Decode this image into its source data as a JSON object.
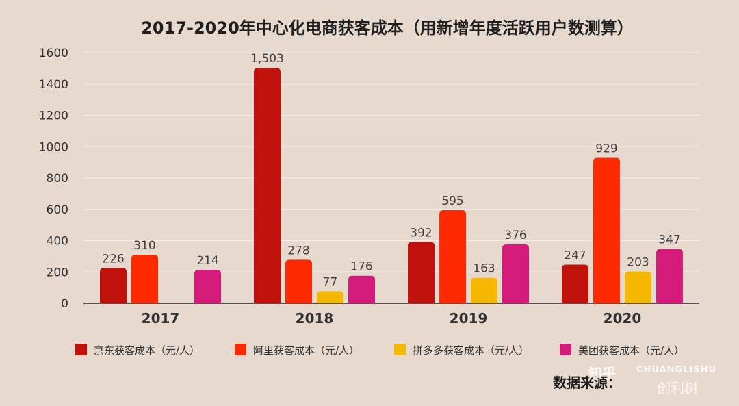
{
  "chart_data": {
    "type": "bar",
    "title": "2017-2020年中心化电商获客成本（用新增年度活跃用户数测算）",
    "categories": [
      "2017",
      "2018",
      "2019",
      "2020"
    ],
    "ylim": [
      0,
      1600
    ],
    "yticks": [
      0,
      200,
      400,
      600,
      800,
      1000,
      1200,
      1400,
      1600
    ],
    "xlabel": "",
    "ylabel": "",
    "grid": true,
    "legend_position": "bottom",
    "series": [
      {
        "name": "京东获客成本（元/人）",
        "color": "#c0120a",
        "values": [
          226,
          1503,
          392,
          247
        ],
        "labels": [
          "226",
          "1,503",
          "392",
          "247"
        ]
      },
      {
        "name": "阿里获客成本（元/人）",
        "color": "#ff2a00",
        "values": [
          310,
          278,
          595,
          929
        ],
        "labels": [
          "310",
          "278",
          "595",
          "929"
        ]
      },
      {
        "name": "拼多多获客成本（元/人）",
        "color": "#f5b800",
        "values": [
          null,
          77,
          163,
          203
        ],
        "labels": [
          "",
          "77",
          "163",
          "203"
        ]
      },
      {
        "name": "美团获客成本（元/人）",
        "color": "#d41a7a",
        "values": [
          214,
          176,
          376,
          347
        ],
        "labels": [
          "214",
          "176",
          "376",
          "347"
        ]
      }
    ]
  },
  "source_note": "数据来源：",
  "watermark": {
    "line1": "CHUANGLISHU",
    "line2": "创利树",
    "zhihu": "知乎"
  }
}
